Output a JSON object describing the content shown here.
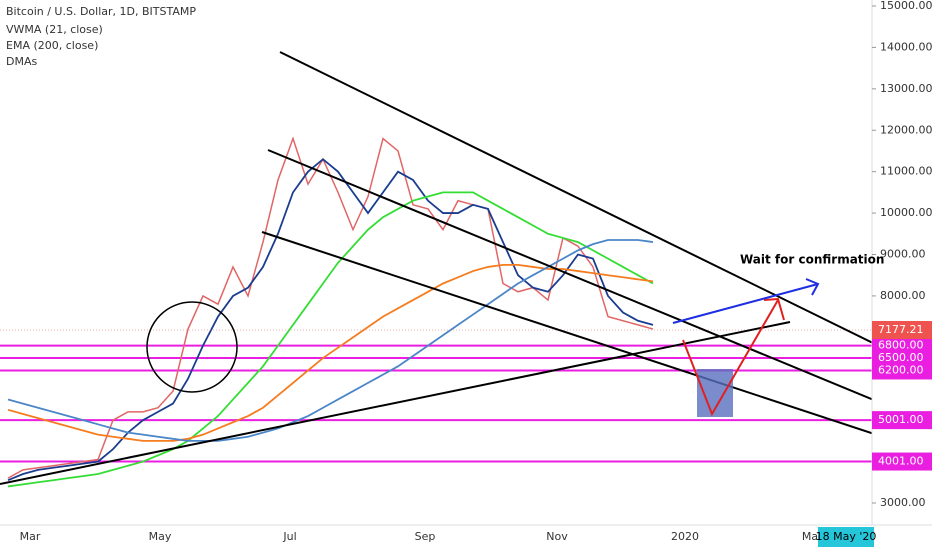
{
  "chart_data": {
    "type": "line",
    "title": "Bitcoin / U.S. Dollar, 1D, BITSTAMP",
    "legend": [
      "VWMA (21, close)",
      "EMA (200, close)",
      "DMAs"
    ],
    "ylim": [
      3000,
      15000
    ],
    "yticks": [
      {
        "value": 3000,
        "label": "3000.00"
      },
      {
        "value": 8000,
        "label": "8000.00"
      },
      {
        "value": 9000,
        "label": "9000.00"
      },
      {
        "value": 10000,
        "label": "10000.00"
      },
      {
        "value": 11000,
        "label": "11000.00"
      },
      {
        "value": 12000,
        "label": "12000.00"
      },
      {
        "value": 13000,
        "label": "13000.00"
      },
      {
        "value": 14000,
        "label": "14000.00"
      },
      {
        "value": 15000,
        "label": "15000.00"
      }
    ],
    "time_labels": [
      "Mar",
      "May",
      "Jul",
      "Sep",
      "Nov",
      "2020",
      "Ma"
    ],
    "cursor_date": "18 May '20",
    "last_price": 7177.21,
    "levels": [
      {
        "value": 6800,
        "label": "6800.00"
      },
      {
        "value": 6500,
        "label": "6500.00"
      },
      {
        "value": 6200,
        "label": "6200.00"
      },
      {
        "value": 5001,
        "label": "5001.00"
      },
      {
        "value": 4001,
        "label": "4001.00"
      }
    ],
    "level_color": "#e91ee0",
    "annotation": "Wait for confirmation",
    "series": [
      {
        "color": "#e06666",
        "values": [
          3600,
          3800,
          3850,
          3900,
          3950,
          4000,
          4050,
          5000,
          5200,
          5200,
          5300,
          5700,
          7200,
          8000,
          7800,
          8700,
          8000,
          9300,
          10800,
          11800,
          10700,
          11300,
          10500,
          9600,
          10400,
          11800,
          11500,
          10200,
          10100,
          9600,
          10300,
          10200,
          10100,
          8300,
          8100,
          8200,
          7900,
          9400,
          9200,
          8700,
          7500,
          7400,
          7300,
          7200
        ]
      },
      {
        "color": "#1a3d8f",
        "values": [
          3550,
          3700,
          3800,
          3850,
          3900,
          3950,
          4000,
          4300,
          4700,
          5000,
          5200,
          5400,
          6000,
          6800,
          7500,
          8000,
          8200,
          8700,
          9500,
          10500,
          11000,
          11300,
          11000,
          10500,
          10000,
          10500,
          11000,
          10800,
          10300,
          10000,
          10000,
          10200,
          10100,
          9300,
          8500,
          8200,
          8100,
          8500,
          9000,
          8900,
          8000,
          7600,
          7400,
          7300
        ]
      },
      {
        "color": "#33dd33",
        "values": [
          3400,
          3450,
          3500,
          3550,
          3600,
          3650,
          3700,
          3800,
          3900,
          4000,
          4150,
          4300,
          4500,
          4800,
          5100,
          5500,
          5900,
          6300,
          6800,
          7300,
          7800,
          8300,
          8800,
          9200,
          9600,
          9900,
          10100,
          10300,
          10400,
          10500,
          10500,
          10500,
          10300,
          10100,
          9900,
          9700,
          9500,
          9400,
          9300,
          9100,
          8900,
          8700,
          8500,
          8300
        ]
      },
      {
        "color": "#f57c1f",
        "values": [
          5250,
          5150,
          5050,
          4950,
          4850,
          4750,
          4650,
          4600,
          4550,
          4500,
          4500,
          4500,
          4550,
          4650,
          4800,
          4950,
          5100,
          5300,
          5600,
          5900,
          6200,
          6500,
          6750,
          7000,
          7250,
          7500,
          7700,
          7900,
          8100,
          8300,
          8450,
          8600,
          8700,
          8750,
          8750,
          8700,
          8650,
          8650,
          8600,
          8550,
          8500,
          8450,
          8400,
          8350
        ]
      },
      {
        "color": "#4a86c8",
        "values": [
          5500,
          5400,
          5300,
          5200,
          5100,
          5000,
          4900,
          4800,
          4700,
          4650,
          4600,
          4550,
          4500,
          4500,
          4500,
          4550,
          4600,
          4700,
          4800,
          4950,
          5100,
          5300,
          5500,
          5700,
          5900,
          6100,
          6300,
          6550,
          6800,
          7050,
          7300,
          7550,
          7800,
          8050,
          8300,
          8500,
          8700,
          8900,
          9100,
          9250,
          9350,
          9350,
          9350,
          9300
        ]
      }
    ]
  }
}
